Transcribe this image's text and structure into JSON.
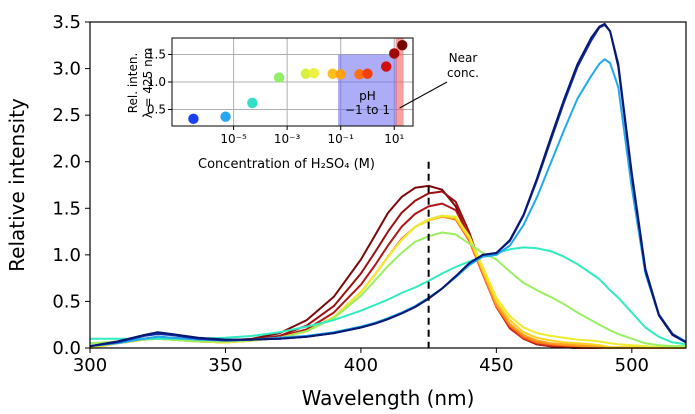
{
  "chart_data": [
    {
      "id": "main",
      "type": "line",
      "xlabel": "Wavelength (nm)",
      "ylabel": "Relative intensity",
      "xlim": [
        300,
        520
      ],
      "ylim": [
        0,
        3.5
      ],
      "xticks": [
        300,
        350,
        400,
        450,
        500
      ],
      "yticks": [
        0.0,
        0.5,
        1.0,
        1.5,
        2.0,
        2.5,
        3.0,
        3.5
      ],
      "xtick_labels": [
        "300",
        "350",
        "400",
        "450",
        "500"
      ],
      "ytick_labels": [
        "0.0",
        "0.5",
        "1.0",
        "1.5",
        "2.0",
        "2.5",
        "3.0",
        "3.5"
      ],
      "vline": {
        "x": 425,
        "y_top": 2.0,
        "style": "dashed",
        "color": "#000000"
      },
      "x": [
        300,
        310,
        320,
        325,
        330,
        340,
        350,
        360,
        370,
        380,
        390,
        400,
        405,
        410,
        415,
        420,
        425,
        430,
        435,
        440,
        445,
        450,
        455,
        460,
        465,
        470,
        475,
        480,
        485,
        488,
        490,
        492,
        495,
        500,
        505,
        510,
        515,
        520
      ],
      "series": [
        {
          "name": "s1",
          "color": "#7a0a0a",
          "values": [
            0.0,
            0.06,
            0.1,
            0.12,
            0.11,
            0.09,
            0.08,
            0.1,
            0.16,
            0.3,
            0.55,
            0.95,
            1.2,
            1.45,
            1.62,
            1.72,
            1.74,
            1.7,
            1.52,
            1.18,
            0.8,
            0.45,
            0.22,
            0.1,
            0.04,
            0.02,
            0.01,
            0.0,
            0.0,
            0.0,
            0.0,
            0.0,
            0.0,
            0.0,
            0.0,
            0.0,
            0.0,
            0.0
          ]
        },
        {
          "name": "s2",
          "color": "#9a1010",
          "values": [
            0.0,
            0.06,
            0.1,
            0.11,
            0.1,
            0.08,
            0.07,
            0.09,
            0.13,
            0.24,
            0.45,
            0.8,
            1.02,
            1.25,
            1.45,
            1.58,
            1.66,
            1.68,
            1.57,
            1.24,
            0.82,
            0.45,
            0.22,
            0.1,
            0.04,
            0.02,
            0.01,
            0.0,
            0.0,
            0.0,
            0.0,
            0.0,
            0.0,
            0.0,
            0.0,
            0.0,
            0.0,
            0.0
          ]
        },
        {
          "name": "s3",
          "color": "#b01818",
          "values": [
            0.0,
            0.06,
            0.1,
            0.11,
            0.1,
            0.08,
            0.07,
            0.08,
            0.12,
            0.2,
            0.38,
            0.68,
            0.88,
            1.1,
            1.3,
            1.44,
            1.52,
            1.55,
            1.48,
            1.2,
            0.8,
            0.44,
            0.21,
            0.1,
            0.04,
            0.02,
            0.01,
            0.0,
            0.0,
            0.0,
            0.0,
            0.0,
            0.0,
            0.0,
            0.0,
            0.0,
            0.0,
            0.0
          ]
        },
        {
          "name": "s4",
          "color": "#e0301e",
          "values": [
            0.0,
            0.05,
            0.09,
            0.1,
            0.09,
            0.07,
            0.06,
            0.08,
            0.11,
            0.18,
            0.33,
            0.6,
            0.78,
            0.98,
            1.17,
            1.3,
            1.38,
            1.42,
            1.38,
            1.15,
            0.79,
            0.44,
            0.22,
            0.1,
            0.05,
            0.03,
            0.02,
            0.0,
            0.0,
            0.0,
            0.0,
            0.0,
            0.0,
            0.0,
            0.0,
            0.0,
            0.0,
            0.0
          ]
        },
        {
          "name": "s5",
          "color": "#ff7a10",
          "values": [
            0.0,
            0.05,
            0.09,
            0.1,
            0.09,
            0.07,
            0.06,
            0.08,
            0.11,
            0.18,
            0.33,
            0.6,
            0.78,
            0.98,
            1.16,
            1.3,
            1.37,
            1.41,
            1.38,
            1.16,
            0.8,
            0.45,
            0.24,
            0.12,
            0.06,
            0.04,
            0.03,
            0.02,
            0.01,
            0.0,
            0.0,
            0.0,
            0.0,
            0.0,
            0.0,
            0.0,
            0.0,
            0.0
          ]
        },
        {
          "name": "s6",
          "color": "#ffa020",
          "values": [
            0.0,
            0.05,
            0.09,
            0.1,
            0.09,
            0.07,
            0.06,
            0.08,
            0.11,
            0.18,
            0.33,
            0.6,
            0.78,
            0.98,
            1.16,
            1.3,
            1.37,
            1.41,
            1.39,
            1.17,
            0.82,
            0.47,
            0.26,
            0.14,
            0.08,
            0.05,
            0.04,
            0.03,
            0.02,
            0.01,
            0.0,
            0.0,
            0.0,
            0.0,
            0.0,
            0.0,
            0.0,
            0.0
          ]
        },
        {
          "name": "s7",
          "color": "#ffd020",
          "values": [
            0.0,
            0.05,
            0.09,
            0.1,
            0.09,
            0.07,
            0.06,
            0.08,
            0.11,
            0.18,
            0.33,
            0.6,
            0.78,
            0.98,
            1.16,
            1.3,
            1.37,
            1.42,
            1.4,
            1.18,
            0.84,
            0.5,
            0.3,
            0.17,
            0.11,
            0.08,
            0.06,
            0.05,
            0.04,
            0.03,
            0.02,
            0.01,
            0.01,
            0.01,
            0.01,
            0.01,
            0.01,
            0.01
          ]
        },
        {
          "name": "s8",
          "color": "#ecec30",
          "values": [
            0.0,
            0.05,
            0.09,
            0.1,
            0.09,
            0.07,
            0.06,
            0.08,
            0.11,
            0.18,
            0.33,
            0.6,
            0.78,
            0.98,
            1.16,
            1.3,
            1.38,
            1.42,
            1.41,
            1.2,
            0.87,
            0.54,
            0.34,
            0.22,
            0.16,
            0.13,
            0.11,
            0.09,
            0.08,
            0.07,
            0.06,
            0.05,
            0.04,
            0.03,
            0.02,
            0.01,
            0.01,
            0.01
          ]
        },
        {
          "name": "s9",
          "color": "#9af060",
          "values": [
            0.05,
            0.07,
            0.09,
            0.1,
            0.09,
            0.07,
            0.07,
            0.08,
            0.11,
            0.18,
            0.32,
            0.56,
            0.72,
            0.88,
            1.02,
            1.14,
            1.2,
            1.24,
            1.22,
            1.12,
            1.02,
            0.95,
            0.82,
            0.7,
            0.62,
            0.55,
            0.47,
            0.38,
            0.3,
            0.25,
            0.22,
            0.19,
            0.15,
            0.1,
            0.05,
            0.03,
            0.02,
            0.02
          ]
        },
        {
          "name": "s10",
          "color": "#30ecc0",
          "values": [
            0.1,
            0.1,
            0.1,
            0.1,
            0.1,
            0.1,
            0.11,
            0.13,
            0.17,
            0.23,
            0.3,
            0.4,
            0.46,
            0.52,
            0.59,
            0.65,
            0.72,
            0.8,
            0.87,
            0.93,
            0.98,
            1.02,
            1.06,
            1.08,
            1.07,
            1.04,
            0.98,
            0.9,
            0.8,
            0.74,
            0.68,
            0.62,
            0.54,
            0.38,
            0.22,
            0.12,
            0.06,
            0.04
          ]
        },
        {
          "name": "s11",
          "color": "#20a8f0",
          "values": [
            0.02,
            0.05,
            0.1,
            0.12,
            0.11,
            0.09,
            0.08,
            0.09,
            0.11,
            0.13,
            0.17,
            0.23,
            0.27,
            0.32,
            0.38,
            0.45,
            0.54,
            0.64,
            0.76,
            0.89,
            0.98,
            1.0,
            1.1,
            1.32,
            1.62,
            1.98,
            2.34,
            2.68,
            2.92,
            3.05,
            3.1,
            3.06,
            2.8,
            1.72,
            0.8,
            0.35,
            0.15,
            0.07
          ]
        },
        {
          "name": "s12",
          "color": "#1030b0",
          "values": [
            0.02,
            0.06,
            0.13,
            0.15,
            0.14,
            0.1,
            0.08,
            0.09,
            0.1,
            0.12,
            0.16,
            0.22,
            0.26,
            0.31,
            0.37,
            0.44,
            0.53,
            0.64,
            0.77,
            0.91,
            1.0,
            1.02,
            1.15,
            1.42,
            1.8,
            2.22,
            2.64,
            3.02,
            3.3,
            3.44,
            3.47,
            3.4,
            3.05,
            1.88,
            0.85,
            0.36,
            0.15,
            0.06
          ]
        },
        {
          "name": "s13",
          "color": "#081870",
          "values": [
            0.02,
            0.07,
            0.14,
            0.17,
            0.15,
            0.11,
            0.09,
            0.09,
            0.1,
            0.12,
            0.16,
            0.22,
            0.26,
            0.31,
            0.37,
            0.44,
            0.53,
            0.64,
            0.77,
            0.91,
            1.0,
            1.02,
            1.16,
            1.43,
            1.82,
            2.25,
            2.67,
            3.05,
            3.33,
            3.45,
            3.48,
            3.4,
            3.02,
            1.85,
            0.83,
            0.35,
            0.14,
            0.06
          ]
        }
      ]
    },
    {
      "id": "inset",
      "type": "scatter",
      "xscale": "log",
      "xlabel": "Concentration of H₂SO₄ (M)",
      "ylabel_line1": "Rel. inten.",
      "ylabel_line2": "λ = 425 nm",
      "xlim_log10": [
        -7.3,
        1.7
      ],
      "ylim": [
        0.2,
        1.8
      ],
      "yticks": [
        0.5,
        1.0,
        1.5
      ],
      "ytick_labels": [
        "0.5",
        "1.0",
        "1.5"
      ],
      "xticks_log10": [
        -5,
        -3,
        -1,
        1
      ],
      "xtick_labels": [
        "10⁻⁵",
        "10⁻³",
        "10⁻¹",
        "10¹"
      ],
      "grid": true,
      "points": [
        {
          "log10_x": -6.5,
          "y": 0.33,
          "color": "#1a40f0"
        },
        {
          "log10_x": -5.3,
          "y": 0.37,
          "color": "#2aa6f0"
        },
        {
          "log10_x": -4.3,
          "y": 0.62,
          "color": "#30e0c8"
        },
        {
          "log10_x": -3.3,
          "y": 1.08,
          "color": "#90f068"
        },
        {
          "log10_x": -2.3,
          "y": 1.15,
          "color": "#d8f040"
        },
        {
          "log10_x": -2.0,
          "y": 1.16,
          "color": "#f0f040"
        },
        {
          "log10_x": -1.3,
          "y": 1.15,
          "color": "#ffc020"
        },
        {
          "log10_x": -1.0,
          "y": 1.14,
          "color": "#ffa010"
        },
        {
          "log10_x": -0.3,
          "y": 1.14,
          "color": "#ff7010"
        },
        {
          "log10_x": 0.0,
          "y": 1.15,
          "color": "#f04010"
        },
        {
          "log10_x": 0.7,
          "y": 1.28,
          "color": "#d01010"
        },
        {
          "log10_x": 1.0,
          "y": 1.52,
          "color": "#a00808"
        },
        {
          "log10_x": 1.3,
          "y": 1.67,
          "color": "#7a0505"
        }
      ],
      "ph_region": {
        "log10_from": -1.1,
        "log10_to": 1.1,
        "color": "#6a6af0",
        "label_line1": "pH",
        "label_line2": "−1 to 1"
      },
      "near_conc_region": {
        "log10_from": 1.05,
        "log10_to": 1.35,
        "color": "#f06060"
      },
      "annotation_line1": "Near",
      "annotation_line2": "conc."
    }
  ]
}
